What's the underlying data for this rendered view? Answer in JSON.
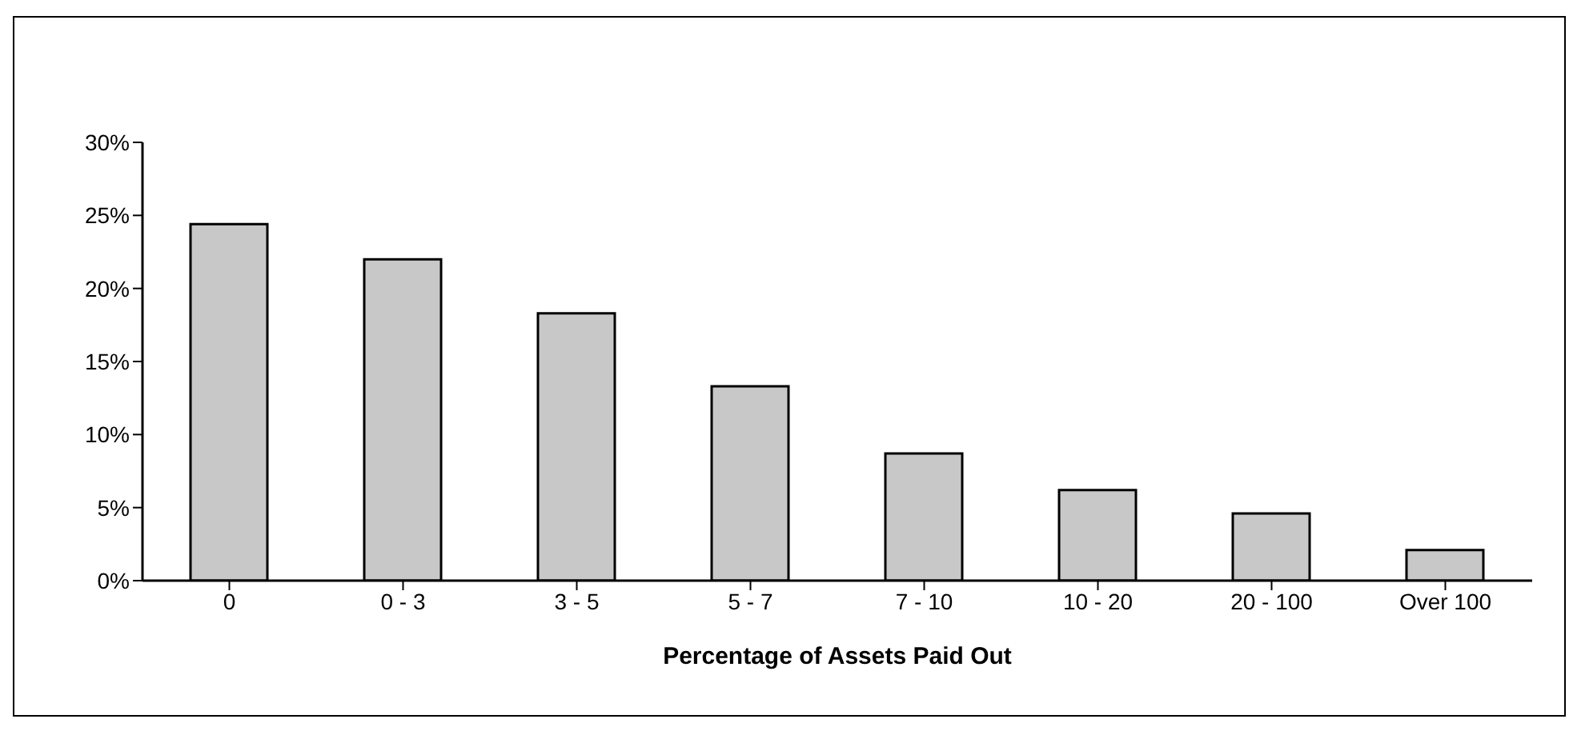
{
  "chart_data": {
    "type": "bar",
    "xlabel": "Percentage of Assets Paid Out",
    "categories": [
      "0",
      "0 - 3",
      "3 - 5",
      "5 - 7",
      "7 - 10",
      "10 - 20",
      "20 - 100",
      "Over 100"
    ],
    "values": [
      24.4,
      22.0,
      18.3,
      13.3,
      8.7,
      6.2,
      4.6,
      2.1
    ],
    "color": "#c8c8c8",
    "ylim": [
      0,
      30
    ],
    "yticks": [
      {
        "value": 0,
        "label": "0%"
      },
      {
        "value": 5,
        "label": "5%"
      },
      {
        "value": 10,
        "label": "10%"
      },
      {
        "value": 15,
        "label": "15%"
      },
      {
        "value": 20,
        "label": "20%"
      },
      {
        "value": 25,
        "label": "25%"
      },
      {
        "value": 30,
        "label": "30%"
      }
    ],
    "grid": false,
    "legend": false
  }
}
